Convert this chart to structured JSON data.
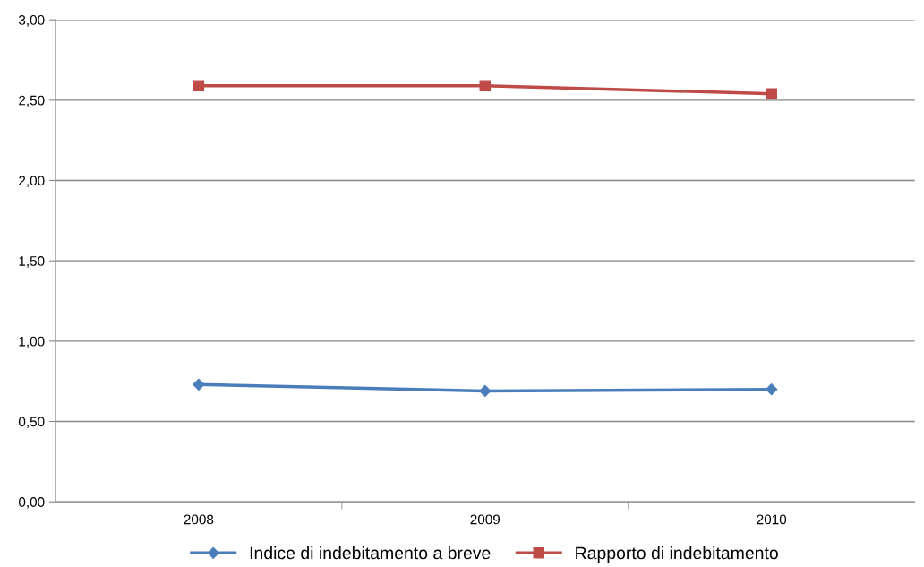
{
  "chart_data": {
    "type": "line",
    "categories": [
      "2008",
      "2009",
      "2010"
    ],
    "series": [
      {
        "name": "Indice di indebitamento a breve",
        "color": "#4a7ebb",
        "marker": "diamond",
        "values": [
          0.73,
          0.69,
          0.7
        ]
      },
      {
        "name": "Rapporto di indebitamento",
        "color": "#be4b48",
        "marker": "square",
        "values": [
          2.59,
          2.59,
          2.54
        ]
      }
    ],
    "ylim": [
      0,
      3
    ],
    "yticks": [
      {
        "value": 0,
        "label": "0,00"
      },
      {
        "value": 0.5,
        "label": "0,50"
      },
      {
        "value": 1,
        "label": "1,00"
      },
      {
        "value": 1.5,
        "label": "1,50"
      },
      {
        "value": 2,
        "label": "2,00"
      },
      {
        "value": 2.5,
        "label": "2,50"
      },
      {
        "value": 3,
        "label": "3,00"
      }
    ],
    "grid": "y",
    "legend": "bottom",
    "line_style": "solid"
  }
}
